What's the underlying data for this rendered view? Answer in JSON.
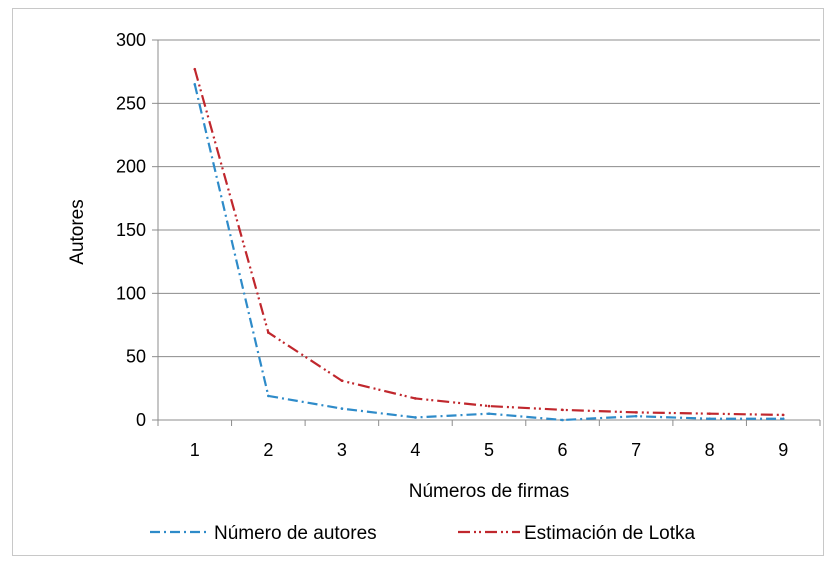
{
  "chart_data": {
    "type": "line",
    "x": [
      1,
      2,
      3,
      4,
      5,
      6,
      7,
      8,
      9
    ],
    "xlabel": "Números de firmas",
    "ylabel": "Autores",
    "ylim": [
      0,
      300
    ],
    "yticks": [
      0,
      50,
      100,
      150,
      200,
      250,
      300
    ],
    "grid": true,
    "legend_position": "bottom",
    "series": [
      {
        "name": "Número de autores",
        "color": "#2e8bc9",
        "dash": "dash-dot",
        "values": [
          265,
          19,
          9,
          2,
          5,
          0,
          3,
          1,
          1
        ]
      },
      {
        "name": "Estimación de Lotka",
        "color": "#c0272d",
        "dash": "dash-dot-dot",
        "values": [
          277,
          69,
          31,
          17,
          11,
          8,
          6,
          5,
          4
        ]
      }
    ]
  }
}
